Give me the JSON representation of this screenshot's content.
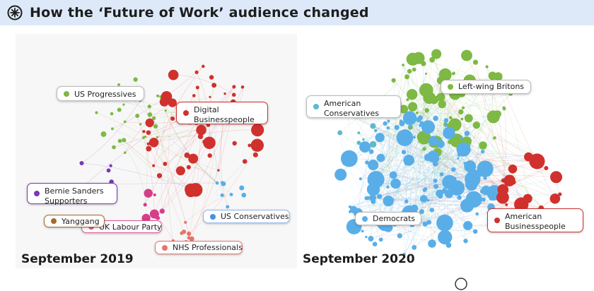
{
  "header": {
    "title": "How the ‘Future of Work’ audience changed",
    "icon": "starburst-icon",
    "background": "#dde9f8"
  },
  "panels": [
    {
      "caption": "September 2019",
      "labels": [
        {
          "text": "US Progressives",
          "color": "#7db944"
        },
        {
          "text": "Digital\nBusinesspeople",
          "color": "#d0312d"
        },
        {
          "text": "Bernie Sanders\nSupporters",
          "color": "#7a38b6"
        },
        {
          "text": "Yanggang",
          "color": "#a5692e"
        },
        {
          "text": "UK Labour Party",
          "color": "#e05595"
        },
        {
          "text": "US Conservatives",
          "color": "#4a8fe0"
        },
        {
          "text": "NHS Professionals",
          "color": "#e8746a"
        }
      ]
    },
    {
      "caption": "September 2020",
      "labels": [
        {
          "text": "Left-wing Britons",
          "color": "#7db944"
        },
        {
          "text": "American\nConservatives",
          "color": "#5fb8cc"
        },
        {
          "text": "Democrats",
          "color": "#5aaee8"
        },
        {
          "text": "American\nBusinesspeople",
          "color": "#d0312d"
        }
      ]
    }
  ],
  "colors": {
    "green": "#7db944",
    "red": "#d0312d",
    "blue": "#5aaee8",
    "teal": "#5fb8cc",
    "purple": "#7a38b6",
    "pink": "#d63d8a",
    "brown": "#a5692e",
    "salmon": "#e8746a"
  }
}
